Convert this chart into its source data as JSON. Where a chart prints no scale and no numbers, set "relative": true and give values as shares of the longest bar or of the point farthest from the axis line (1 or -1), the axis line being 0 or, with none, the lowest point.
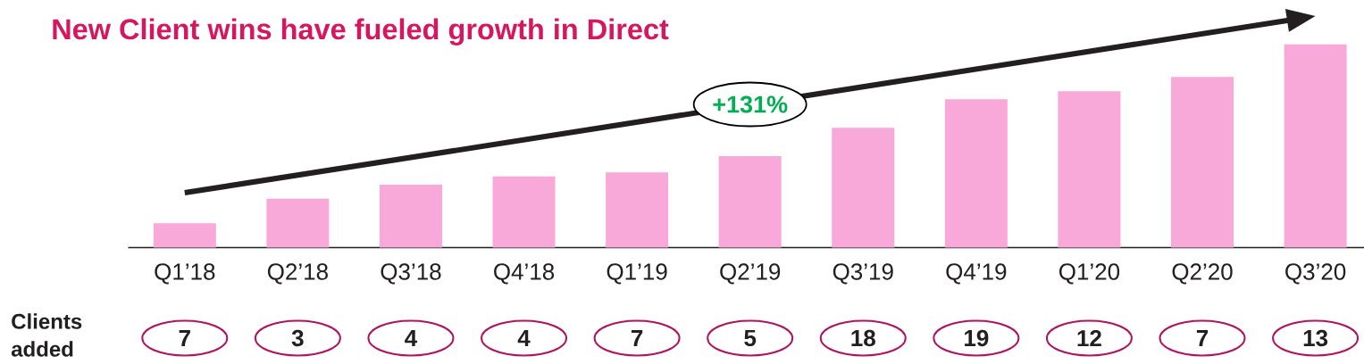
{
  "chart_data": {
    "type": "bar",
    "title": "New Client wins have fueled growth in Direct",
    "categories": [
      "Q1’18",
      "Q2’18",
      "Q3’18",
      "Q4’18",
      "Q1’19",
      "Q2’19",
      "Q3’19",
      "Q4’19",
      "Q1’20",
      "Q2’20",
      "Q3’20"
    ],
    "values": [
      0.12,
      0.24,
      0.31,
      0.35,
      0.37,
      0.45,
      0.59,
      0.73,
      0.77,
      0.84,
      1
    ],
    "color": "#f9a8da",
    "relative": true,
    "annotations": [
      "+131%",
      "Clients added",
      "7",
      "3",
      "4",
      "4",
      "7",
      "5",
      "18",
      "19",
      "12",
      "7",
      "13"
    ]
  }
}
